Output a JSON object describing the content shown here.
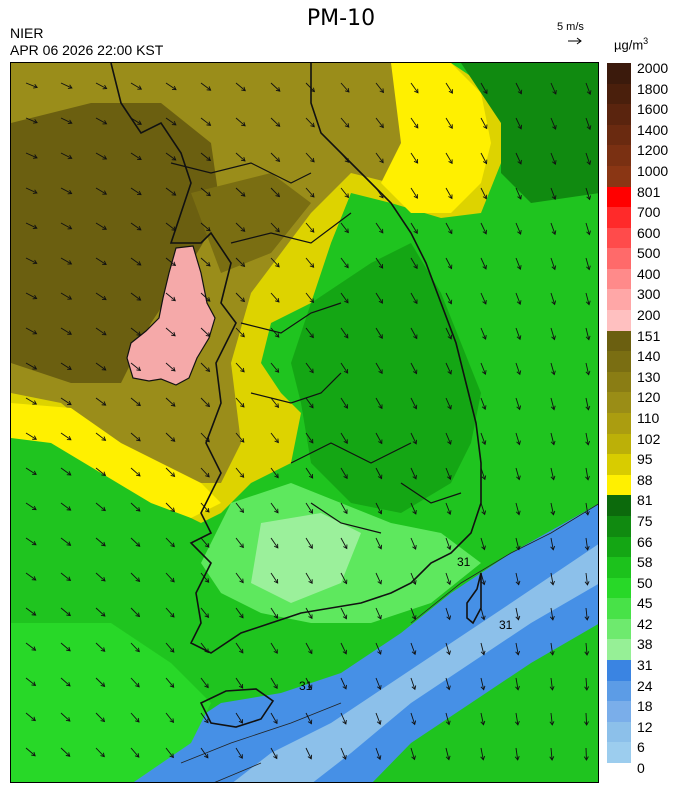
{
  "header": {
    "title": "PM-10",
    "org": "NIER",
    "timestamp": "APR 06 2026 22:00 KST",
    "wind_reference": "5 m/s",
    "unit": "µg/m",
    "unit_exponent": "3"
  },
  "map": {
    "variable": "PM-10",
    "contour_labels": [
      "31",
      "31",
      "31"
    ],
    "wind_direction": "northwest to southeast flow",
    "colors": {
      "dark_olive": "#6b5f10",
      "olive": "#9a8d1a",
      "yellow": "#ddd300",
      "bright_yellow": "#fff000",
      "dark_green": "#108a10",
      "green": "#1fc41f",
      "light_green": "#5ee85e",
      "pale_green": "#9bf09b",
      "blue": "#4690e6",
      "light_blue": "#8cc0ea",
      "pink": "#f5a9a9"
    }
  },
  "legend": {
    "labels": [
      "2000",
      "1800",
      "1600",
      "1400",
      "1200",
      "1000",
      "801",
      "700",
      "600",
      "500",
      "400",
      "300",
      "200",
      "151",
      "140",
      "130",
      "120",
      "110",
      "102",
      "95",
      "88",
      "81",
      "75",
      "66",
      "58",
      "50",
      "45",
      "42",
      "38",
      "31",
      "24",
      "18",
      "12",
      "6",
      "0"
    ],
    "colors": [
      "#3b1a0c",
      "#4a1f0c",
      "#5a240e",
      "#6a2a10",
      "#7a3012",
      "#8a3614",
      "#ff0000",
      "#ff2a2a",
      "#ff4b4b",
      "#ff6a6a",
      "#ff8a8a",
      "#ffa7a7",
      "#ffc0c0",
      "#6b5f10",
      "#7a6e12",
      "#8a7d14",
      "#9a8d16",
      "#ab9d10",
      "#bcb008",
      "#d8cc00",
      "#fff000",
      "#0c6a0c",
      "#108a10",
      "#14a614",
      "#1cc21c",
      "#28d828",
      "#48e248",
      "#6eea6e",
      "#96f096",
      "#3a84e2",
      "#5c9ce6",
      "#7aaeea",
      "#8cc0ea",
      "#9ccdee"
    ]
  }
}
